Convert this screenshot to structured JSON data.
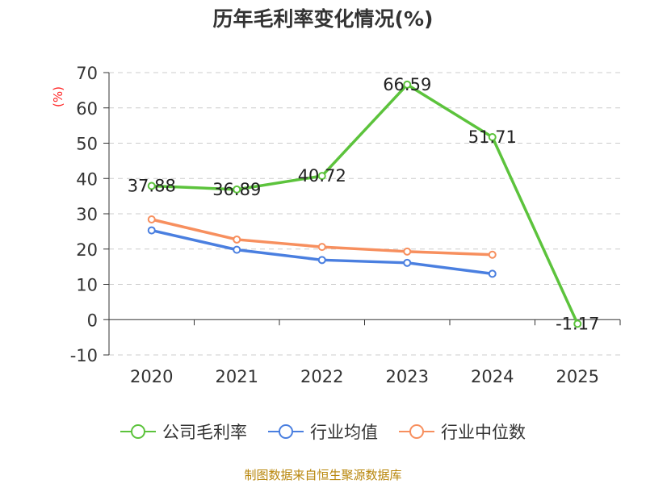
{
  "chart_data": {
    "type": "line",
    "title": "历年毛利率变化情况(%)",
    "ylabel": "(%)",
    "xlabel": "",
    "categories": [
      "2020",
      "2021",
      "2022",
      "2023",
      "2024",
      "2025"
    ],
    "ylim": [
      -10,
      70
    ],
    "yticks": [
      -10,
      0,
      10,
      20,
      30,
      40,
      50,
      60,
      70
    ],
    "grid": true,
    "legend_position": "bottom",
    "series": [
      {
        "name": "公司毛利率",
        "color": "#5cc33c",
        "values": [
          37.88,
          36.89,
          40.72,
          66.59,
          51.71,
          -1.17
        ],
        "labels": true
      },
      {
        "name": "行业均值",
        "color": "#4a7fe0",
        "values": [
          25.3,
          19.8,
          16.9,
          16.1,
          13.0,
          null
        ],
        "labels": false
      },
      {
        "name": "行业中位数",
        "color": "#f78f5e",
        "values": [
          28.4,
          22.7,
          20.6,
          19.3,
          18.4,
          null
        ],
        "labels": false
      }
    ],
    "source": "制图数据来自恒生聚源数据库"
  }
}
